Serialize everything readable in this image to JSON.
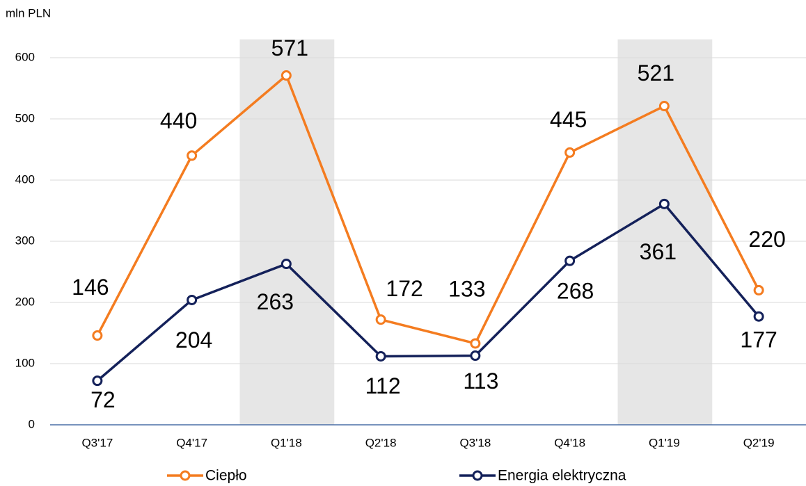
{
  "chart_data": {
    "type": "line",
    "y_axis_label": "mln PLN",
    "categories": [
      "Q3'17",
      "Q4'17",
      "Q1'18",
      "Q2'18",
      "Q3'18",
      "Q4'18",
      "Q1'19",
      "Q2'19"
    ],
    "series": [
      {
        "name": "Ciepło",
        "color": "#f47c20",
        "values": [
          146,
          440,
          571,
          172,
          133,
          445,
          521,
          220
        ]
      },
      {
        "name": "Energia elektryczna",
        "color": "#14215a",
        "values": [
          72,
          204,
          263,
          112,
          113,
          268,
          361,
          177
        ]
      }
    ],
    "ylim": [
      0,
      630
    ],
    "yticks": [
      0,
      100,
      200,
      300,
      400,
      500,
      600
    ],
    "grid": true,
    "shaded_categories": [
      "Q1'18",
      "Q1'19"
    ],
    "shade_color": "#e6e6e6"
  }
}
